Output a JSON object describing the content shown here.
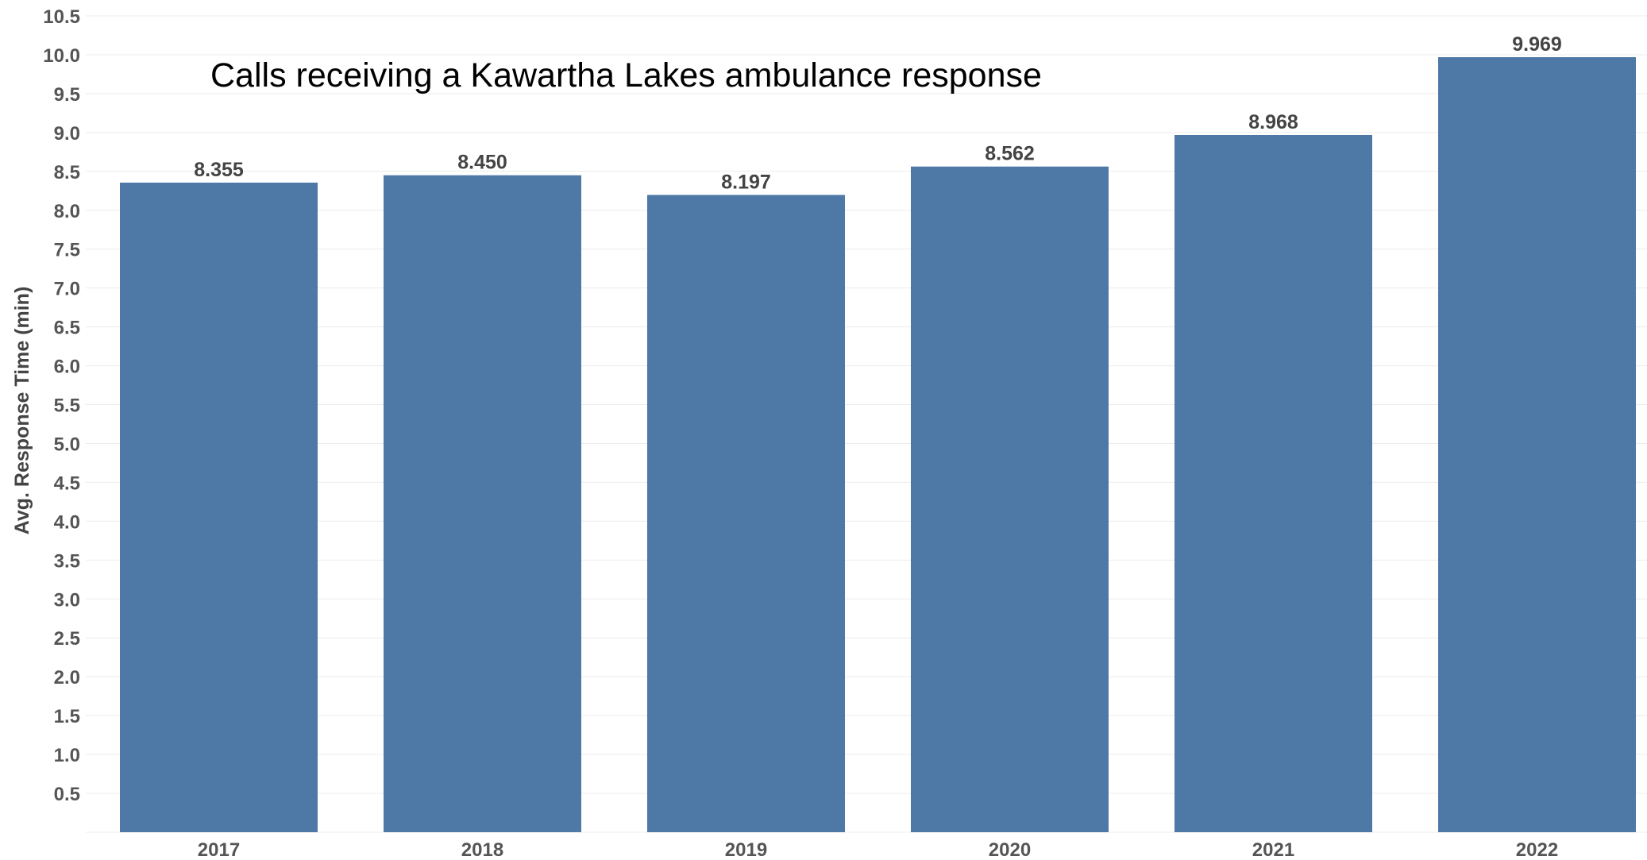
{
  "chart_data": {
    "type": "bar",
    "title": "Calls receiving a Kawartha Lakes ambulance response",
    "xlabel": "",
    "ylabel": "Avg. Response Time (min)",
    "categories": [
      "2017",
      "2018",
      "2019",
      "2020",
      "2021",
      "2022"
    ],
    "values": [
      8.355,
      8.45,
      8.197,
      8.562,
      8.968,
      9.969
    ],
    "data_labels": [
      "8.355",
      "8.450",
      "8.197",
      "8.562",
      "8.968",
      "9.969"
    ],
    "ylim": [
      0,
      10.5
    ],
    "yticks": [
      "0.5",
      "1.0",
      "1.5",
      "2.0",
      "2.5",
      "3.0",
      "3.5",
      "4.0",
      "4.5",
      "5.0",
      "5.5",
      "6.0",
      "6.5",
      "7.0",
      "7.5",
      "8.0",
      "8.5",
      "9.0",
      "9.5",
      "10.0",
      "10.5"
    ],
    "grid": true,
    "legend": "none",
    "bar_color": "#4e79a7"
  }
}
